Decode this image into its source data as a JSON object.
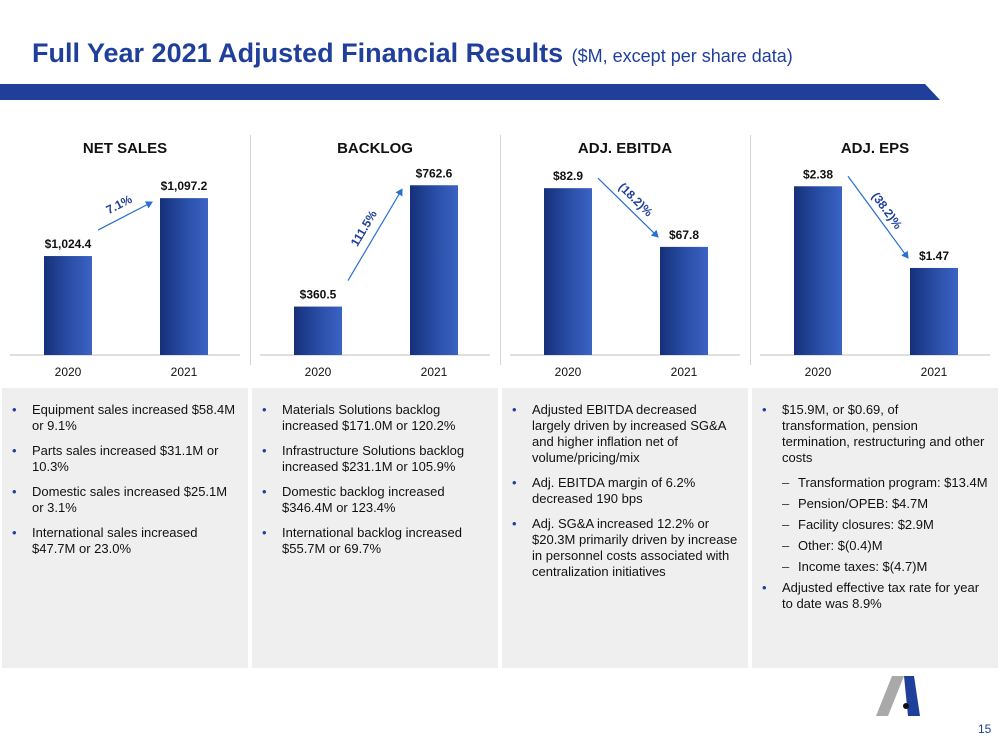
{
  "header": {
    "title": "Full Year 2021 Adjusted Financial Results",
    "subtitle": "($M, except per share data)",
    "page_number": "15"
  },
  "colors": {
    "brand_blue": "#1f3f9a",
    "bar_dark": "#16307a",
    "bar_light": "#3b63c4",
    "panel_bg": "#efefef"
  },
  "chart_data": [
    {
      "type": "bar",
      "title": "NET SALES",
      "categories": [
        "2020",
        "2021"
      ],
      "values": [
        1024.4,
        1097.2
      ],
      "labels": [
        "$1,024.4",
        "$1,097.2"
      ],
      "change": "7.1%",
      "direction": "up",
      "ylim": [
        900,
        1120
      ]
    },
    {
      "type": "bar",
      "title": "BACKLOG",
      "categories": [
        "2020",
        "2021"
      ],
      "values": [
        360.5,
        762.6
      ],
      "labels": [
        "$360.5",
        "$762.6"
      ],
      "change": "111.5%",
      "direction": "up",
      "ylim": [
        200,
        780
      ]
    },
    {
      "type": "bar",
      "title": "ADJ. EBITDA",
      "categories": [
        "2020",
        "2021"
      ],
      "values": [
        82.9,
        67.8
      ],
      "labels": [
        "$82.9",
        "$67.8"
      ],
      "change": "(18.2)%",
      "direction": "down",
      "ylim": [
        40,
        85
      ]
    },
    {
      "type": "bar",
      "title": "ADJ. EPS",
      "categories": [
        "2020",
        "2021"
      ],
      "values": [
        2.38,
        1.47
      ],
      "labels": [
        "$2.38",
        "$1.47"
      ],
      "change": "(38.2)%",
      "direction": "down",
      "ylim": [
        0.5,
        2.45
      ]
    }
  ],
  "notes": [
    {
      "items": [
        {
          "text": "Equipment sales increased $58.4M or 9.1%",
          "level": 1
        },
        {
          "text": "Parts sales increased $31.1M or 10.3%",
          "level": 1
        },
        {
          "text": "Domestic sales increased $25.1M or 3.1%",
          "level": 1
        },
        {
          "text": "International sales increased $47.7M or 23.0%",
          "level": 1
        }
      ]
    },
    {
      "items": [
        {
          "text": "Materials Solutions backlog increased $171.0M or 120.2%",
          "level": 1
        },
        {
          "text": "Infrastructure Solutions backlog increased $231.1M or 105.9%",
          "level": 1
        },
        {
          "text": "Domestic backlog increased $346.4M or 123.4%",
          "level": 1
        },
        {
          "text": "International backlog increased $55.7M or 69.7%",
          "level": 1
        }
      ]
    },
    {
      "items": [
        {
          "text": "Adjusted EBITDA decreased largely driven by increased SG&A and higher inflation net of volume/pricing/mix",
          "level": 1
        },
        {
          "text": "Adj. EBITDA margin of 6.2% decreased 190 bps",
          "level": 1
        },
        {
          "text": "Adj. SG&A increased 12.2% or $20.3M primarily driven by increase in personnel costs associated with centralization initiatives",
          "level": 1
        }
      ]
    },
    {
      "items": [
        {
          "text": "$15.9M, or $0.69, of transformation, pension termination, restructuring and other costs",
          "level": 1
        },
        {
          "text": "Transformation program: $13.4M",
          "level": 2
        },
        {
          "text": "Pension/OPEB: $4.7M",
          "level": 2
        },
        {
          "text": "Facility closures: $2.9M",
          "level": 2
        },
        {
          "text": "Other: $(0.4)M",
          "level": 2
        },
        {
          "text": "Income taxes: $(4.7)M",
          "level": 2
        },
        {
          "text": "Adjusted effective tax rate for year to date was 8.9%",
          "level": 1
        }
      ]
    }
  ]
}
